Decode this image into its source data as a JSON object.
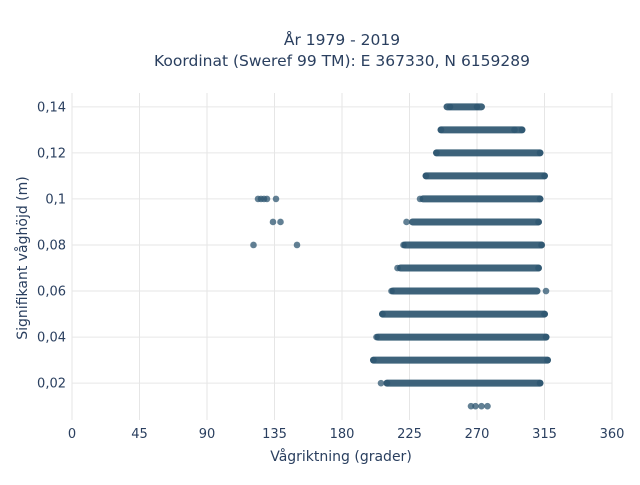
{
  "chart_data": {
    "type": "scatter",
    "title_line1": "År 1979 - 2019",
    "title_line2": "Koordinat (Sweref 99 TM): E 367330, N 6159289",
    "xlabel": "Vågriktning (grader)",
    "ylabel": "Signifikant våghöjd (m)",
    "xlim": [
      0,
      360
    ],
    "ylim": [
      0.004,
      0.146
    ],
    "grid": true,
    "legend": "none",
    "marker_color": "#2e5670",
    "plot_background": "#ffffff",
    "grid_color": "#e6e6e6",
    "xticks": [
      0,
      45,
      90,
      135,
      180,
      225,
      270,
      315,
      360
    ],
    "xtick_labels": [
      "0",
      "45",
      "90",
      "135",
      "180",
      "225",
      "270",
      "315",
      "360"
    ],
    "yticks": [
      0.02,
      0.04,
      0.06,
      0.08,
      0.1,
      0.12,
      0.14
    ],
    "ytick_labels": [
      "0,02",
      "0,04",
      "0,06",
      "0,08",
      "0,1",
      "0,12",
      "0,14"
    ],
    "bands": [
      {
        "y": 0.14,
        "x_min": 250,
        "x_max": 273
      },
      {
        "y": 0.13,
        "x_min": 246,
        "x_max": 300
      },
      {
        "y": 0.12,
        "x_min": 243,
        "x_max": 312
      },
      {
        "y": 0.11,
        "x_min": 236,
        "x_max": 315
      },
      {
        "y": 0.1,
        "x_min": 234,
        "x_max": 312
      },
      {
        "y": 0.09,
        "x_min": 227,
        "x_max": 311
      },
      {
        "y": 0.08,
        "x_min": 222,
        "x_max": 313
      },
      {
        "y": 0.07,
        "x_min": 219,
        "x_max": 311
      },
      {
        "y": 0.06,
        "x_min": 214,
        "x_max": 310
      },
      {
        "y": 0.05,
        "x_min": 207,
        "x_max": 315
      },
      {
        "y": 0.04,
        "x_min": 204,
        "x_max": 316
      },
      {
        "y": 0.03,
        "x_min": 201,
        "x_max": 317
      },
      {
        "y": 0.02,
        "x_min": 210,
        "x_max": 312
      }
    ],
    "points": [
      {
        "x": 124,
        "y": 0.1
      },
      {
        "x": 126,
        "y": 0.1
      },
      {
        "x": 128,
        "y": 0.1
      },
      {
        "x": 130,
        "y": 0.1
      },
      {
        "x": 136,
        "y": 0.1
      },
      {
        "x": 134,
        "y": 0.09
      },
      {
        "x": 139,
        "y": 0.09
      },
      {
        "x": 121,
        "y": 0.08
      },
      {
        "x": 150,
        "y": 0.08
      },
      {
        "x": 252,
        "y": 0.14
      },
      {
        "x": 270,
        "y": 0.14
      },
      {
        "x": 246,
        "y": 0.13
      },
      {
        "x": 295,
        "y": 0.13
      },
      {
        "x": 300,
        "y": 0.13
      },
      {
        "x": 243,
        "y": 0.12
      },
      {
        "x": 312,
        "y": 0.12
      },
      {
        "x": 236,
        "y": 0.11
      },
      {
        "x": 315,
        "y": 0.11
      },
      {
        "x": 232,
        "y": 0.1
      },
      {
        "x": 312,
        "y": 0.1
      },
      {
        "x": 223,
        "y": 0.09
      },
      {
        "x": 311,
        "y": 0.09
      },
      {
        "x": 221,
        "y": 0.08
      },
      {
        "x": 313,
        "y": 0.08
      },
      {
        "x": 217,
        "y": 0.07
      },
      {
        "x": 311,
        "y": 0.07
      },
      {
        "x": 213,
        "y": 0.06
      },
      {
        "x": 316,
        "y": 0.06
      },
      {
        "x": 207,
        "y": 0.05
      },
      {
        "x": 315,
        "y": 0.05
      },
      {
        "x": 203,
        "y": 0.04
      },
      {
        "x": 316,
        "y": 0.04
      },
      {
        "x": 201,
        "y": 0.03
      },
      {
        "x": 317,
        "y": 0.03
      },
      {
        "x": 206,
        "y": 0.02
      },
      {
        "x": 210,
        "y": 0.02
      },
      {
        "x": 312,
        "y": 0.02
      },
      {
        "x": 266,
        "y": 0.01
      },
      {
        "x": 269,
        "y": 0.01
      },
      {
        "x": 273,
        "y": 0.01
      },
      {
        "x": 277,
        "y": 0.01
      }
    ]
  }
}
